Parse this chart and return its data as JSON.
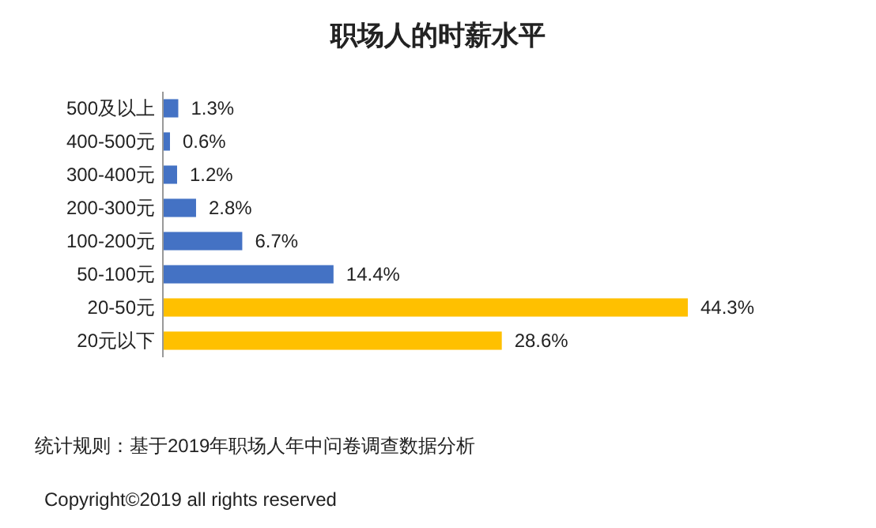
{
  "chart_data": {
    "type": "bar",
    "orientation": "horizontal",
    "title": "职场人的时薪水平",
    "categories": [
      "500及以上",
      "400-500元",
      "300-400元",
      "200-300元",
      "100-200元",
      "50-100元",
      "20-50元",
      "20元以下"
    ],
    "values": [
      1.3,
      0.6,
      1.2,
      2.8,
      6.7,
      14.4,
      44.3,
      28.6
    ],
    "value_labels": [
      "1.3%",
      "0.6%",
      "1.2%",
      "2.8%",
      "6.7%",
      "14.4%",
      "44.3%",
      "28.6%"
    ],
    "colors": [
      "#4472c4",
      "#4472c4",
      "#4472c4",
      "#4472c4",
      "#4472c4",
      "#4472c4",
      "#ffc000",
      "#ffc000"
    ],
    "annotations": [
      "统计规则：基于2019年职场人年中问卷调查数据分析",
      "Copyright©2019 all rights reserved"
    ]
  }
}
